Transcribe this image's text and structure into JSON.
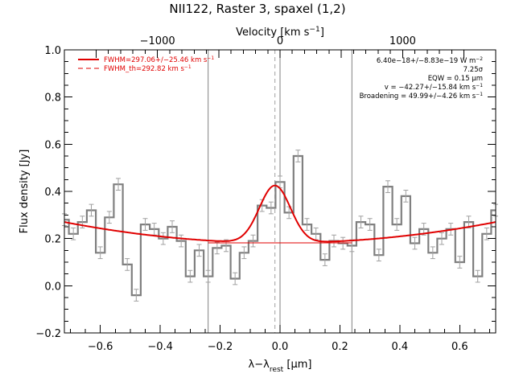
{
  "chart_data": {
    "type": "line",
    "title": "NII122, Raster 3, spaxel (1,2)",
    "xlabel": "λ−λrest [μm]",
    "ylabel": "Flux density [Jy]",
    "top_xlabel": "Velocity [km s−1]",
    "xlim": [
      -0.72,
      0.72
    ],
    "ylim": [
      -0.2,
      1.0
    ],
    "xticks": [
      -0.6,
      -0.4,
      -0.2,
      0.0,
      0.2,
      0.4,
      0.6
    ],
    "xtick_labels": [
      "−0.6",
      "−0.4",
      "−0.2",
      "0.0",
      "0.2",
      "0.4",
      "0.6"
    ],
    "yticks": [
      -0.2,
      0.0,
      0.2,
      0.4,
      0.6,
      0.8,
      1.0
    ],
    "ytick_labels": [
      "−0.2",
      "0.0",
      "0.2",
      "0.4",
      "0.6",
      "0.8",
      "1.0"
    ],
    "top_xticks": [
      -1000,
      0,
      1000
    ],
    "top_xtick_labels": [
      "−1000",
      "0",
      "1000"
    ],
    "velocity_per_micron": 2443,
    "vlines_solid": [
      -0.24,
      0.0,
      0.24
    ],
    "vline_dashed": -0.017,
    "grid": false,
    "legend_position": "top-left",
    "legend": [
      {
        "label": "FWHM=297.06+/−25.46 km s−1",
        "style": "solid",
        "color": "#e00000"
      },
      {
        "label": "FWHM_th=292.82 km s−1",
        "style": "dashed",
        "color": "#e00000"
      }
    ],
    "annotations": [
      "6.40e−18+/−8.83e−19 W m−2",
      "7.25σ",
      "EQW = 0.15 μm",
      "v = −42.27+/−15.84 km s−1",
      "Broadening = 49.99+/−4.26 km s−1"
    ],
    "series": [
      {
        "kind": "spectrum",
        "color": "#808080",
        "x": [
          -0.72,
          -0.69,
          -0.66,
          -0.63,
          -0.6,
          -0.57,
          -0.54,
          -0.51,
          -0.48,
          -0.45,
          -0.42,
          -0.39,
          -0.36,
          -0.33,
          -0.3,
          -0.27,
          -0.24,
          -0.21,
          -0.18,
          -0.15,
          -0.12,
          -0.09,
          -0.06,
          -0.03,
          0.0,
          0.03,
          0.06,
          0.09,
          0.12,
          0.15,
          0.18,
          0.21,
          0.24,
          0.27,
          0.3,
          0.33,
          0.36,
          0.39,
          0.42,
          0.45,
          0.48,
          0.51,
          0.54,
          0.57,
          0.6,
          0.63,
          0.66,
          0.69,
          0.72
        ],
        "y": [
          0.28,
          0.22,
          0.27,
          0.32,
          0.14,
          0.29,
          0.43,
          0.09,
          -0.04,
          0.26,
          0.24,
          0.2,
          0.25,
          0.19,
          0.04,
          0.15,
          0.04,
          0.16,
          0.17,
          0.03,
          0.14,
          0.19,
          0.34,
          0.33,
          0.44,
          0.31,
          0.55,
          0.26,
          0.22,
          0.11,
          0.19,
          0.18,
          0.17,
          0.27,
          0.26,
          0.13,
          0.42,
          0.26,
          0.38,
          0.18,
          0.24,
          0.14,
          0.2,
          0.24,
          0.1,
          0.27,
          0.04,
          0.22,
          0.32
        ],
        "err": [
          0.025,
          0.025,
          0.025,
          0.025,
          0.025,
          0.025,
          0.025,
          0.025,
          0.025,
          0.025,
          0.025,
          0.025,
          0.025,
          0.025,
          0.025,
          0.025,
          0.025,
          0.025,
          0.025,
          0.025,
          0.025,
          0.025,
          0.025,
          0.025,
          0.025,
          0.025,
          0.025,
          0.025,
          0.025,
          0.025,
          0.025,
          0.025,
          0.025,
          0.025,
          0.025,
          0.025,
          0.025,
          0.025,
          0.025,
          0.025,
          0.025,
          0.025,
          0.025,
          0.025,
          0.025,
          0.025,
          0.025,
          0.025,
          0.025
        ]
      },
      {
        "kind": "fit",
        "color": "#e00000",
        "continuum_a": 0.182,
        "continuum_b": 0.17,
        "gaussian_amp": 0.243,
        "gaussian_center": -0.017,
        "gaussian_sigma": 0.052
      },
      {
        "kind": "baseline",
        "color": "#e00000",
        "y": 0.182
      }
    ]
  }
}
